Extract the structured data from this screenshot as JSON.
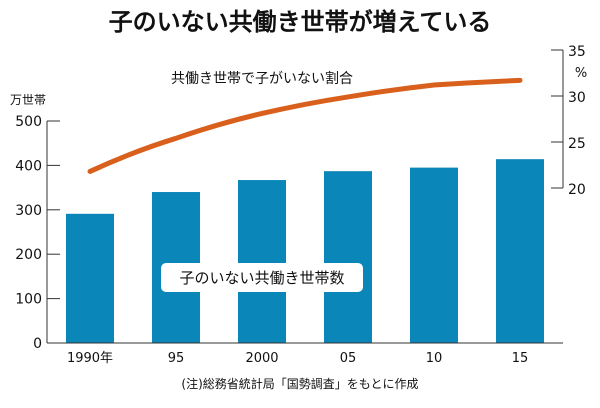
{
  "chart_data": {
    "type": "bar+line",
    "title": "子のいない共働き世帯が増えている",
    "categories": [
      "1990年",
      "95",
      "2000",
      "05",
      "10",
      "15"
    ],
    "series": [
      {
        "name": "子のいない共働き世帯数",
        "type": "bar",
        "axis": "left",
        "values": [
          291,
          340,
          367,
          387,
          395,
          414
        ],
        "color": "#0a86b8"
      },
      {
        "name": "共働き世帯で子がいない割合",
        "type": "line",
        "axis": "right",
        "values": [
          21.8,
          25.4,
          28.1,
          29.9,
          31.2,
          31.7
        ],
        "color": "#d9601c"
      }
    ],
    "left_axis": {
      "unit": "万世帯",
      "ylim": [
        0,
        500
      ],
      "ticks": [
        "0",
        "100",
        "200",
        "300",
        "400",
        "500"
      ]
    },
    "right_axis": {
      "unit": "%",
      "ylim": [
        20,
        35
      ],
      "ticks": [
        "20",
        "25",
        "30",
        "35"
      ]
    },
    "grid": false,
    "source": "(注)総務省統計局「国勢調査」をもとに作成"
  }
}
